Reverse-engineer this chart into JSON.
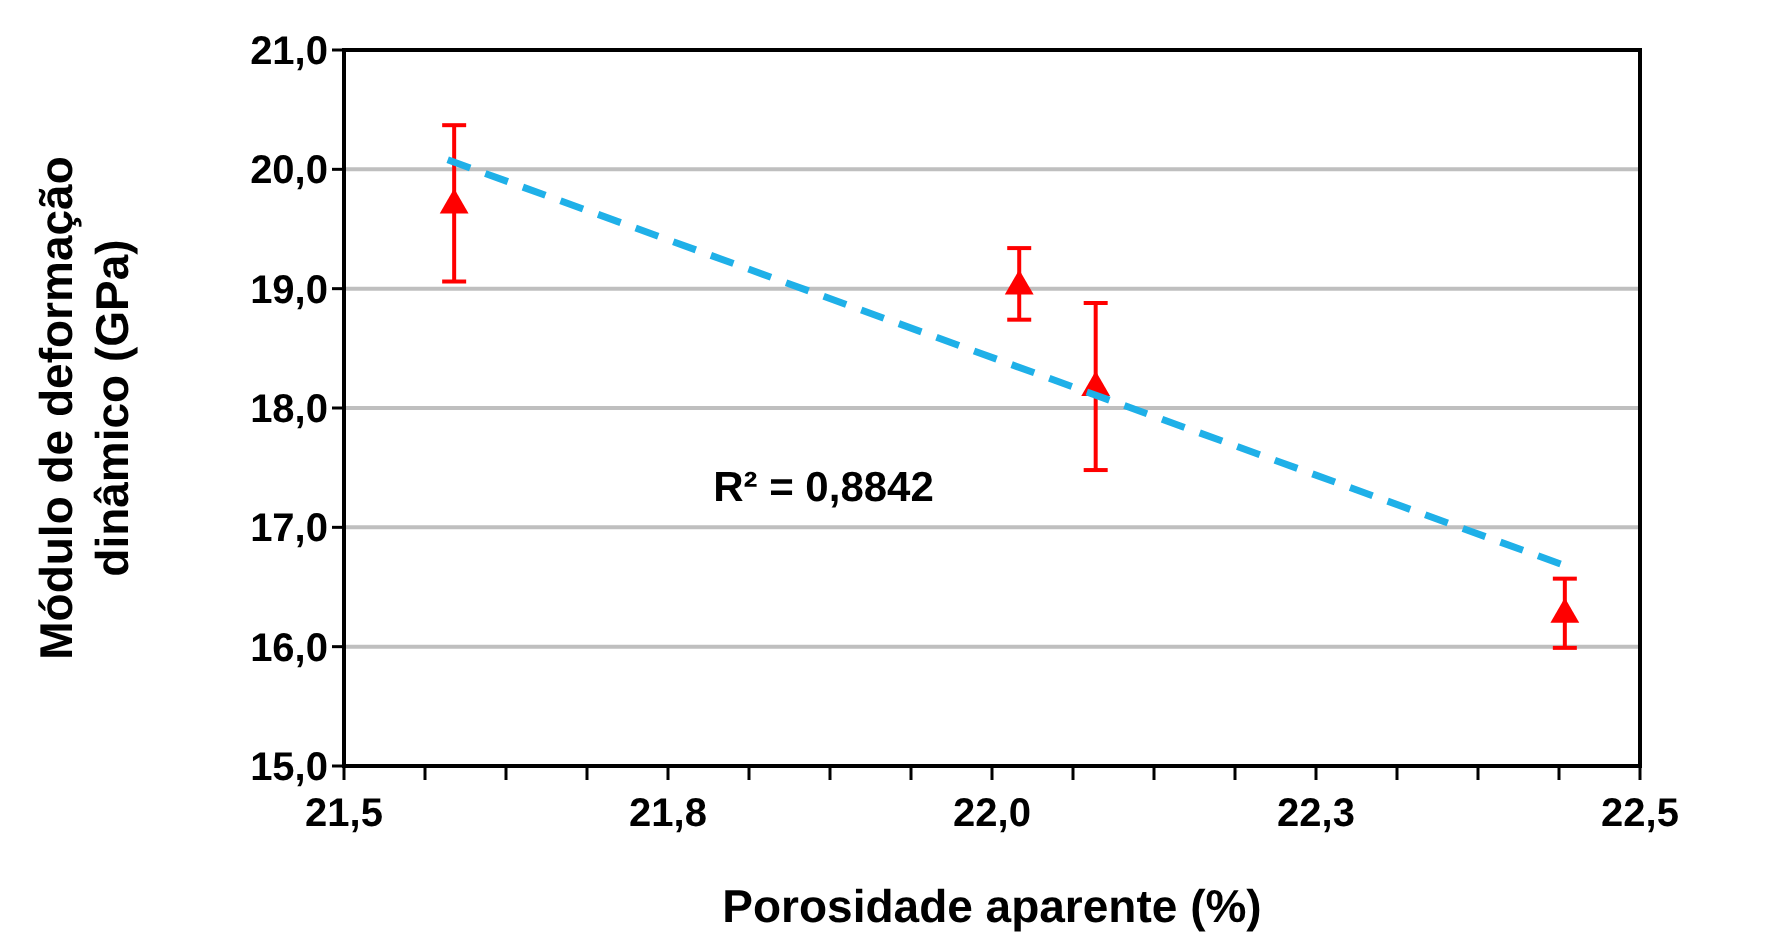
{
  "chart_data": {
    "type": "scatter",
    "xlabel": "Porosidade aparente (%)",
    "ylabel": "Módulo de deformação dinâmico (GPa)",
    "xlim": [
      21.5,
      22.5
    ],
    "xticks": [
      {
        "value": 21.5,
        "label": "21,5"
      },
      {
        "value": 21.75,
        "label": "21,8"
      },
      {
        "value": 22.0,
        "label": "22,0"
      },
      {
        "value": 22.25,
        "label": "22,3"
      },
      {
        "value": 22.5,
        "label": "22,5"
      }
    ],
    "ylim": [
      15,
      21
    ],
    "yticks": [
      {
        "value": 15,
        "label": "15,0"
      },
      {
        "value": 16,
        "label": "16,0"
      },
      {
        "value": 17,
        "label": "17,0"
      },
      {
        "value": 18,
        "label": "18,0"
      },
      {
        "value": 19,
        "label": "19,0"
      },
      {
        "value": 20,
        "label": "20,0"
      },
      {
        "value": 21,
        "label": "21,0"
      }
    ],
    "grid": "y",
    "series": [
      {
        "color": "#ff0000",
        "marker": "triangle",
        "x": [
          21.585,
          22.021,
          22.08,
          22.442
        ],
        "values": [
          19.7,
          19.02,
          18.17,
          16.27
        ],
        "errors": [
          [
            19.06,
            20.37
          ],
          [
            18.74,
            19.34
          ],
          [
            17.48,
            18.88
          ],
          [
            15.99,
            16.57
          ]
        ]
      },
      {
        "type": "line",
        "color": "#1fb0e8",
        "line_style": "dashed",
        "marker": "none",
        "x": [
          21.58,
          22.442
        ],
        "values": [
          20.08,
          16.68
        ]
      }
    ],
    "annotations": [
      "R² = 0,8842"
    ]
  }
}
